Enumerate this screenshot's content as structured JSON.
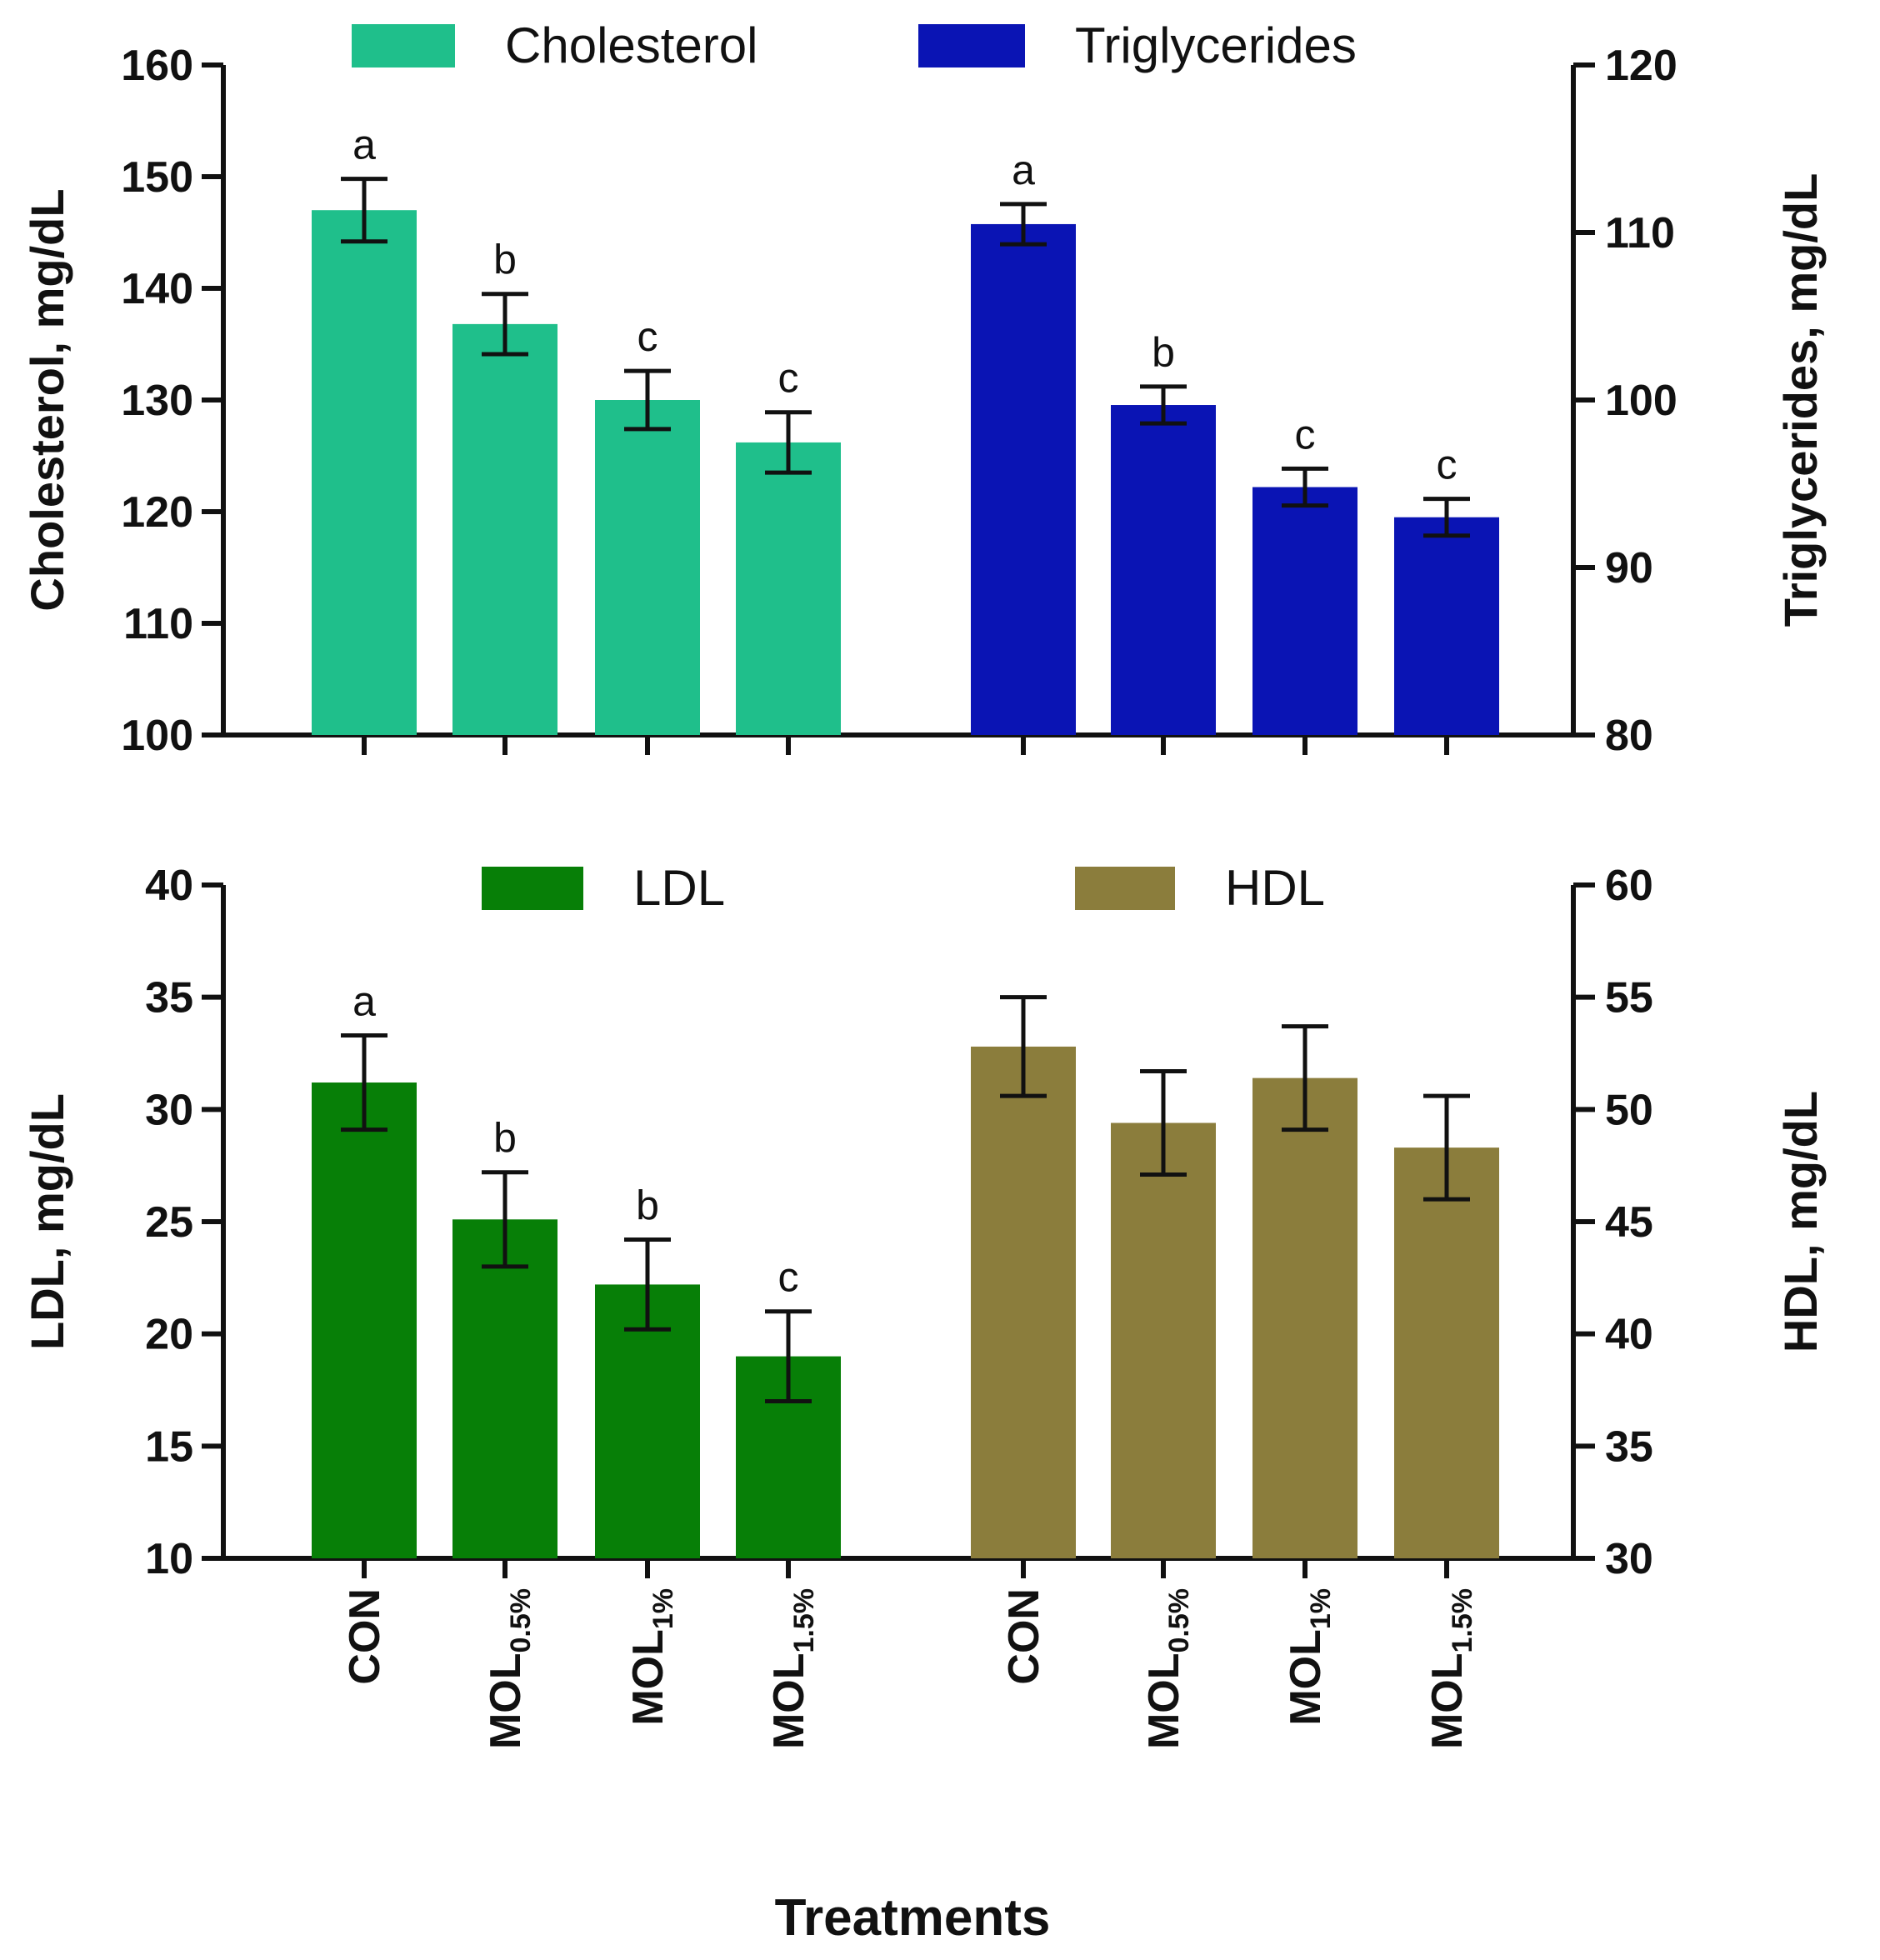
{
  "colors": {
    "cholesterol": "#1fbf8b",
    "triglycerides": "#0a14b4",
    "ldl": "#077f07",
    "hdl": "#8b7d3c",
    "axis": "#111111"
  },
  "x_title": "Treatments",
  "chart_data": [
    {
      "type": "bar",
      "panel": "top",
      "categories": [
        {
          "main": "CON",
          "sub": ""
        },
        {
          "main": "MOL",
          "sub": "0.5%"
        },
        {
          "main": "MOL",
          "sub": "1%"
        },
        {
          "main": "MOL",
          "sub": "1.5%"
        }
      ],
      "left_axis": {
        "label": "Cholesterol, mg/dL",
        "range": [
          100,
          160
        ],
        "ticks": [
          100,
          110,
          120,
          130,
          140,
          150,
          160
        ]
      },
      "right_axis": {
        "label": "Triglycerides, mg/dL",
        "range": [
          80,
          120
        ],
        "ticks": [
          80,
          90,
          100,
          110,
          120
        ]
      },
      "legend_position": "top",
      "series": [
        {
          "name": "Cholesterol",
          "axis": "left",
          "color_key": "cholesterol",
          "values": [
            147,
            136.8,
            130,
            126.2
          ],
          "errors": [
            2.8,
            2.7,
            2.6,
            2.7
          ],
          "letters": [
            "a",
            "b",
            "c",
            "c"
          ]
        },
        {
          "name": "Triglycerides",
          "axis": "right",
          "color_key": "triglycerides",
          "values": [
            110.5,
            99.7,
            94.8,
            93
          ],
          "errors": [
            1.2,
            1.1,
            1.1,
            1.1
          ],
          "letters": [
            "a",
            "b",
            "c",
            "c"
          ]
        }
      ]
    },
    {
      "type": "bar",
      "panel": "bottom",
      "categories": [
        {
          "main": "CON",
          "sub": ""
        },
        {
          "main": "MOL",
          "sub": "0.5%"
        },
        {
          "main": "MOL",
          "sub": "1%"
        },
        {
          "main": "MOL",
          "sub": "1.5%"
        }
      ],
      "left_axis": {
        "label": "LDL, mg/dL",
        "range": [
          10,
          40
        ],
        "ticks": [
          10,
          15,
          20,
          25,
          30,
          35,
          40
        ]
      },
      "right_axis": {
        "label": "HDL, mg/dL",
        "range": [
          30,
          60
        ],
        "ticks": [
          30,
          35,
          40,
          45,
          50,
          55,
          60
        ]
      },
      "legend_position": "top",
      "series": [
        {
          "name": "LDL",
          "axis": "left",
          "color_key": "ldl",
          "values": [
            31.2,
            25.1,
            22.2,
            19
          ],
          "errors": [
            2.1,
            2.1,
            2.0,
            2.0
          ],
          "letters": [
            "a",
            "b",
            "b",
            "c"
          ]
        },
        {
          "name": "HDL",
          "axis": "right",
          "color_key": "hdl",
          "values": [
            52.8,
            49.4,
            51.4,
            48.3
          ],
          "errors": [
            2.2,
            2.3,
            2.3,
            2.3
          ],
          "letters": [
            "",
            "",
            "",
            ""
          ]
        }
      ]
    }
  ]
}
